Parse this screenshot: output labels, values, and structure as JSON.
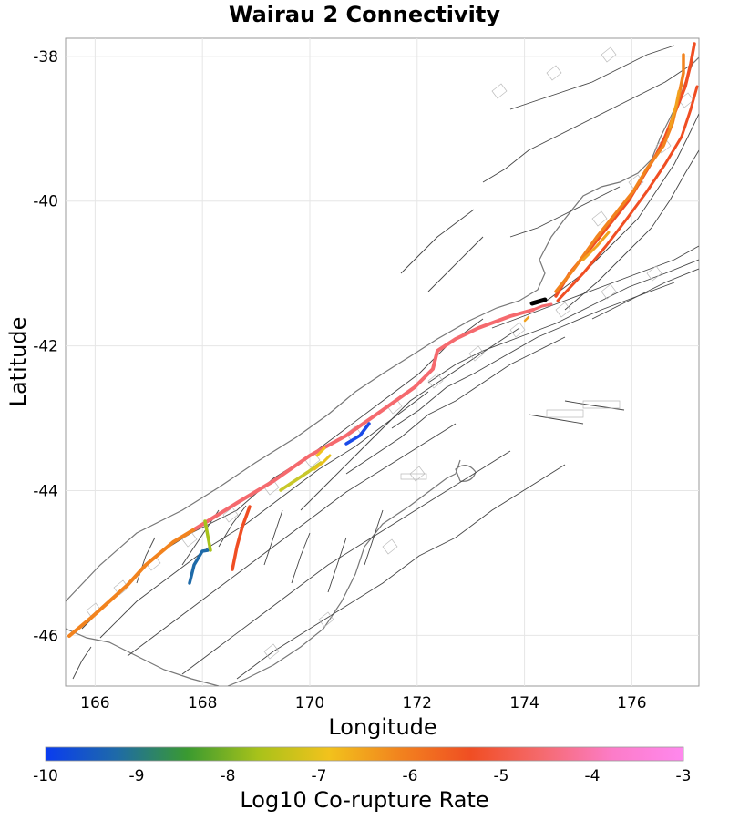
{
  "title": "Wairau 2 Connectivity",
  "axes": {
    "xlabel": "Longitude",
    "ylabel": "Latitude",
    "xticks": [
      "166",
      "168",
      "170",
      "172",
      "174",
      "176"
    ],
    "yticks": [
      "-38",
      "-40",
      "-42",
      "-44",
      "-46"
    ],
    "xlim": [
      165.45,
      177.25
    ],
    "ylim": [
      -46.7,
      -37.75
    ],
    "grid": true
  },
  "colorbar": {
    "label": "Log10 Co-rupture Rate",
    "ticks": [
      "-10",
      "-9",
      "-8",
      "-7",
      "-6",
      "-5",
      "-4",
      "-3"
    ],
    "range": [
      -10,
      -3
    ],
    "stops": [
      "#0a3cf0",
      "#1e6aa8",
      "#3a9a30",
      "#a8c21a",
      "#f2c21c",
      "#f2831e",
      "#f04e23",
      "#f56a6e",
      "#fc7cc8",
      "#ff88ee"
    ]
  },
  "source_fault": {
    "name": "Wairau 2",
    "color": "#000000"
  },
  "colors": {
    "background_faults": "#555555",
    "coastline": "#777777",
    "fault_planes": "#b8b8b8",
    "grid": "#e6e6e6"
  }
}
